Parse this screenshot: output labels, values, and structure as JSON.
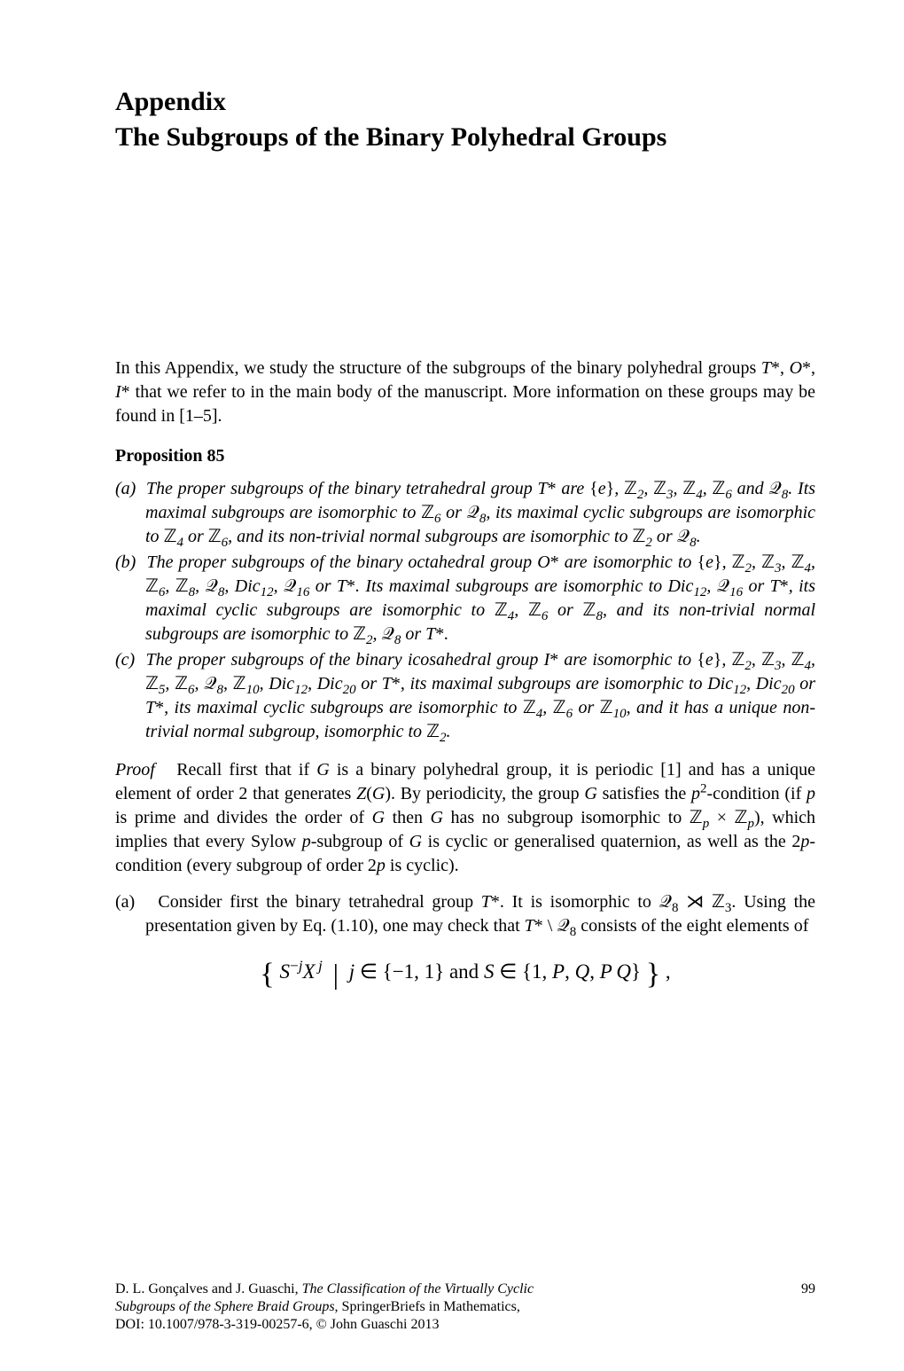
{
  "colors": {
    "text": "#000000",
    "background": "#ffffff",
    "cite": "#000000"
  },
  "kicker": "Appendix",
  "title": "The Subgroups of the Binary Polyhedral Groups",
  "intro": "In this Appendix, we study the structure of the subgroups of the binary polyhedral groups T*, O*, I* that we refer to in the main body of the manuscript. More information on these groups may be found in [1–5].",
  "proposition_label": "Proposition 85",
  "items": {
    "a": "(a)  The proper subgroups of the binary tetrahedral group T* are {e}, ℤ₂, ℤ₃, ℤ₄, ℤ₆ and 𝒬₈. Its maximal subgroups are isomorphic to ℤ₆ or 𝒬₈, its maximal cyclic subgroups are isomorphic to ℤ₄ or ℤ₆, and its non-trivial normal subgroups are isomorphic to ℤ₂ or 𝒬₈.",
    "b": "(b)  The proper subgroups of the binary octahedral group O* are isomorphic to {e}, ℤ₂, ℤ₃, ℤ₄, ℤ₆, ℤ₈, 𝒬₈, Dic₁₂, 𝒬₁₆ or T*. Its maximal subgroups are isomorphic to Dic₁₂, 𝒬₁₆ or T*, its maximal cyclic subgroups are isomorphic to ℤ₄, ℤ₆ or ℤ₈, and its non-trivial normal subgroups are isomorphic to ℤ₂, 𝒬₈ or T*.",
    "c": "(c)  The proper subgroups of the binary icosahedral group I* are isomorphic to {e}, ℤ₂, ℤ₃, ℤ₄, ℤ₅, ℤ₆, 𝒬₈, ℤ₁₀, Dic₁₂, Dic₂₀ or T*, its maximal subgroups are isomorphic to Dic₁₂, Dic₂₀ or T*, its maximal cyclic subgroups are isomorphic to ℤ₄, ℤ₆ or ℤ₁₀, and it has a unique non-trivial normal subgroup, isomorphic to ℤ₂."
  },
  "proof_word": "Proof",
  "proof_body": "   Recall first that if G is a binary polyhedral group, it is periodic [1] and has a unique element of order 2 that generates Z(G). By periodicity, the group G satisfies the p²-condition (if p is prime and divides the order of G then G has no subgroup isomorphic to ℤₚ × ℤₚ), which implies that every Sylow p-subgroup of G is cyclic or generalised quaternion, as well as the 2p-condition (every subgroup of order 2p is cyclic).",
  "proof_item_a": "(a)   Consider first the binary tetrahedral group T*. It is isomorphic to 𝒬₈ ⋊ ℤ₃. Using the presentation given by Eq. (1.10), one may check that T* \\ 𝒬₈ consists of the eight elements of",
  "display_math": "{ S⁻ʲ Xʲ | j ∈ {−1, 1} and S ∈ {1, P, Q, PQ} } ,",
  "footer": {
    "line1": "D. L. Gonçalves and J. Guaschi, The Classification of the Virtually Cyclic",
    "line2": "Subgroups of the Sphere Braid Groups, SpringerBriefs in Mathematics,",
    "line3": "DOI: 10.1007/978-3-319-00257-6, © John Guaschi 2013",
    "page": "99"
  }
}
